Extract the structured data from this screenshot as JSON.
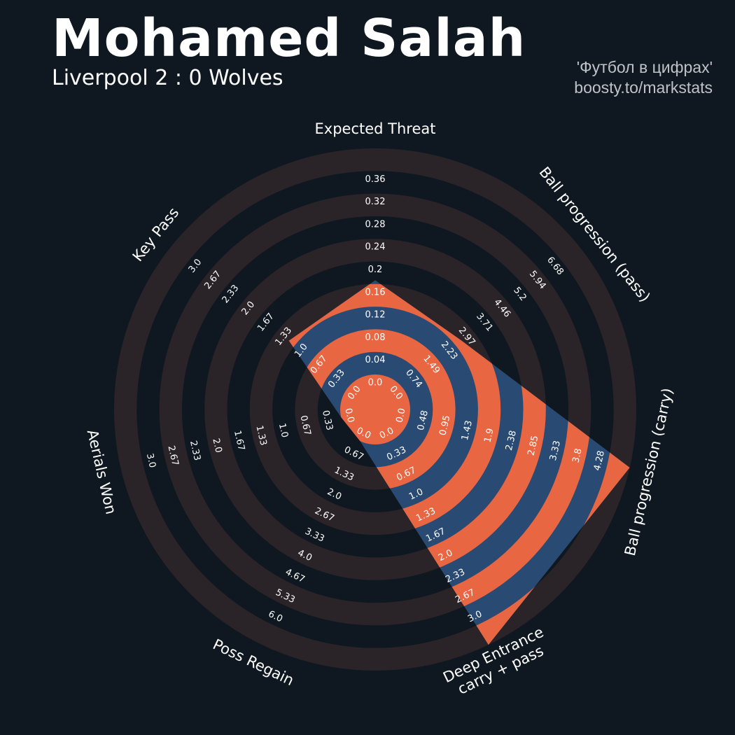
{
  "header": {
    "player": "Mohamed Salah",
    "match": "Liverpool 2 : 0 Wolves",
    "credit_line1": "'Футбол в цифрах'",
    "credit_line2": "boosty.to/markstats"
  },
  "colors": {
    "background": "#0f1820",
    "ring": "#2a2429",
    "polygon_blue": "#294a73",
    "polygon_orange": "#e86641",
    "text": "#ffffff"
  },
  "chart_data": {
    "type": "radar",
    "title": "Mohamed Salah",
    "subtitle": "Liverpool 2 : 0 Wolves",
    "parameters": [
      {
        "label": "Expected Threat",
        "value": 0.15,
        "min": 0.0,
        "max": 0.36,
        "ticks": [
          "0.0",
          "0.04",
          "0.08",
          "0.12",
          "0.16",
          "0.2",
          "0.24",
          "0.28",
          "0.32",
          "0.36"
        ]
      },
      {
        "label": "Ball progression (pass)",
        "value": 2.23,
        "min": 0.0,
        "max": 6.68,
        "ticks": [
          "0.0",
          "0.74",
          "1.49",
          "2.23",
          "2.97",
          "3.71",
          "4.46",
          "5.2",
          "5.94",
          "6.68"
        ]
      },
      {
        "label": "Ball progression (carry)",
        "value": 4.28,
        "min": 0.0,
        "max": 4.28,
        "ticks": [
          "0.0",
          "0.48",
          "0.95",
          "1.43",
          "1.9",
          "2.38",
          "2.85",
          "3.33",
          "3.8",
          "4.28"
        ]
      },
      {
        "label": "Deep Entrance\ncarry + pass",
        "value": 3.0,
        "min": 0.0,
        "max": 3.0,
        "ticks": [
          "0.0",
          "0.33",
          "0.67",
          "1.0",
          "1.33",
          "1.67",
          "2.0",
          "2.33",
          "2.67",
          "3.0"
        ]
      },
      {
        "label": "Poss Regain",
        "value": 0.0,
        "min": 0.0,
        "max": 6.0,
        "ticks": [
          "0.0",
          "0.67",
          "1.33",
          "2.0",
          "2.67",
          "3.33",
          "4.0",
          "4.67",
          "5.33",
          "6.0"
        ]
      },
      {
        "label": "Aerials Won",
        "value": 0.0,
        "min": 0.0,
        "max": 3.0,
        "ticks": [
          "0.0",
          "0.33",
          "0.67",
          "1.0",
          "1.33",
          "1.67",
          "2.0",
          "2.33",
          "2.67",
          "3.0"
        ]
      },
      {
        "label": "Key Pass",
        "value": 1.0,
        "min": 0.0,
        "max": 3.0,
        "ticks": [
          "0.0",
          "0.33",
          "0.67",
          "1.0",
          "1.33",
          "1.67",
          "2.0",
          "2.33",
          "2.67",
          "3.0"
        ]
      }
    ]
  }
}
